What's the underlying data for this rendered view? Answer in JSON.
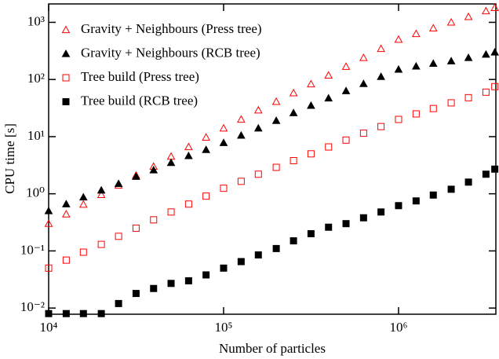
{
  "chart_data": {
    "type": "scatter",
    "xlabel": "Number of particles",
    "ylabel": "CPU time [s]",
    "xscale": "log",
    "yscale": "log",
    "xlim": [
      10000,
      3600000
    ],
    "ylim": [
      0.0078,
      2100
    ],
    "xticks": [
      {
        "value": 10000,
        "label": "10⁴"
      },
      {
        "value": 100000,
        "label": "10⁵"
      },
      {
        "value": 1000000,
        "label": "10⁶"
      }
    ],
    "yticks": [
      {
        "value": 0.01,
        "label": "10⁻²"
      },
      {
        "value": 0.1,
        "label": "10⁻¹"
      },
      {
        "value": 1,
        "label": "10⁰"
      },
      {
        "value": 10,
        "label": "10¹"
      },
      {
        "value": 100,
        "label": "10²"
      },
      {
        "value": 1000,
        "label": "10³"
      }
    ],
    "legend": "upper left",
    "x": [
      10000,
      12600,
      15800,
      20000,
      25100,
      31600,
      39800,
      50100,
      63100,
      79400,
      100000,
      126000,
      158000,
      200000,
      251000,
      316000,
      398000,
      501000,
      631000,
      794000,
      1000000,
      1260000,
      1580000,
      2000000,
      2510000,
      3160000,
      3550000
    ],
    "series": [
      {
        "name": "Gravity + Neighbours (Press tree)",
        "color": "#ff0000",
        "marker": "triangle-open",
        "values": [
          0.3,
          0.44,
          0.65,
          0.96,
          1.4,
          2.1,
          3.0,
          4.5,
          6.6,
          9.7,
          14,
          20,
          29,
          41,
          58,
          83,
          118,
          168,
          240,
          345,
          500,
          630,
          790,
          1000,
          1250,
          1580,
          1800
        ]
      },
      {
        "name": "Gravity + Neighbours (RCB tree)",
        "color": "#000000",
        "marker": "triangle-filled",
        "values": [
          0.5,
          0.66,
          0.87,
          1.15,
          1.5,
          2.0,
          2.6,
          3.5,
          4.6,
          5.9,
          7.8,
          10.5,
          14,
          19,
          26,
          35,
          47,
          63,
          84,
          112,
          150,
          170,
          190,
          210,
          240,
          275,
          300
        ]
      },
      {
        "name": "Tree build (Press tree)",
        "color": "#ff0000",
        "marker": "square-open",
        "values": [
          0.05,
          0.069,
          0.095,
          0.13,
          0.18,
          0.25,
          0.35,
          0.48,
          0.66,
          0.91,
          1.25,
          1.65,
          2.2,
          2.9,
          3.8,
          5.0,
          6.6,
          8.7,
          11.5,
          15,
          20,
          25,
          31,
          39,
          48,
          60,
          75
        ]
      },
      {
        "name": "Tree build (RCB tree)",
        "color": "#000000",
        "marker": "square-filled",
        "values": [
          0.008,
          0.008,
          0.008,
          0.008,
          0.012,
          0.018,
          0.022,
          0.027,
          0.03,
          0.038,
          0.05,
          0.065,
          0.085,
          0.11,
          0.15,
          0.2,
          0.26,
          0.3,
          0.38,
          0.48,
          0.62,
          0.75,
          0.95,
          1.2,
          1.6,
          2.2,
          2.7
        ]
      }
    ]
  }
}
